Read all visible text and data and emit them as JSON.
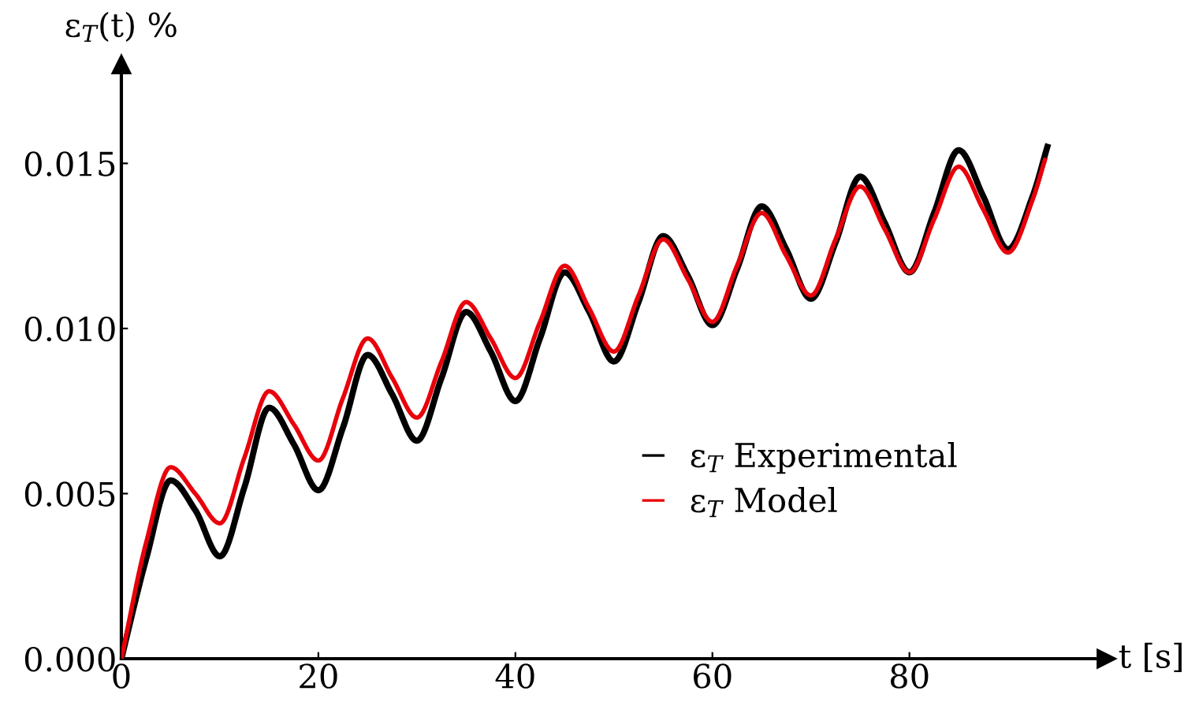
{
  "chart_data": {
    "type": "line",
    "xlabel": "t [s]",
    "ylabel": "ε$_{T}$(t) %",
    "xlim": [
      0,
      100
    ],
    "xticks": [
      0,
      20,
      40,
      60,
      80
    ],
    "ylim": [
      0,
      0.018
    ],
    "yticks": [
      {
        "value": 0,
        "label": "0.000"
      },
      {
        "value": 0.005,
        "label": "0.005"
      },
      {
        "value": 0.01,
        "label": "0.010"
      },
      {
        "value": 0.015,
        "label": "0.015"
      }
    ],
    "grid": false,
    "legend": "right",
    "marker": "none",
    "line_style": "solid",
    "series": [
      {
        "name": "ε$_{T}$ Experimental",
        "color": "#000000",
        "x": [
          0,
          2.5,
          5,
          7.5,
          10,
          12.5,
          15,
          17.5,
          20,
          22.5,
          25,
          27.5,
          30,
          32.5,
          35,
          37.5,
          40,
          42.5,
          45,
          47.5,
          50,
          52.5,
          55,
          57.5,
          60,
          62.5,
          65,
          67.5,
          70,
          72.5,
          75,
          77.5,
          80,
          82.5,
          85,
          87.5,
          90,
          92.5,
          94
        ],
        "values": [
          0,
          0.003,
          0.0054,
          0.0045,
          0.0031,
          0.0052,
          0.0076,
          0.0065,
          0.0051,
          0.007,
          0.0092,
          0.008,
          0.0066,
          0.0085,
          0.0105,
          0.0093,
          0.0078,
          0.0097,
          0.0117,
          0.0105,
          0.009,
          0.0108,
          0.0128,
          0.0116,
          0.0101,
          0.0118,
          0.0137,
          0.0124,
          0.0109,
          0.0126,
          0.0146,
          0.0132,
          0.0117,
          0.0135,
          0.0154,
          0.014,
          0.0124,
          0.014,
          0.0155
        ]
      },
      {
        "name": "ε$_{T}$ Model",
        "color": "#e8000b",
        "x": [
          0,
          2.5,
          5,
          7.5,
          10,
          12.5,
          15,
          17.5,
          20,
          22.5,
          25,
          27.5,
          30,
          32.5,
          35,
          37.5,
          40,
          42.5,
          45,
          47.5,
          50,
          52.5,
          55,
          57.5,
          60,
          62.5,
          65,
          67.5,
          70,
          72.5,
          75,
          77.5,
          80,
          82.5,
          85,
          87.5,
          90,
          92.5,
          93.75
        ],
        "values": [
          0,
          0.0035,
          0.0058,
          0.005,
          0.0041,
          0.0061,
          0.0081,
          0.0071,
          0.006,
          0.0079,
          0.0097,
          0.0085,
          0.0073,
          0.009,
          0.0108,
          0.0097,
          0.0085,
          0.0102,
          0.0119,
          0.0106,
          0.0093,
          0.011,
          0.0127,
          0.0115,
          0.0102,
          0.0119,
          0.0135,
          0.0122,
          0.011,
          0.0127,
          0.0143,
          0.013,
          0.0117,
          0.0133,
          0.0149,
          0.0136,
          0.0123,
          0.0139,
          0.0151
        ]
      }
    ]
  }
}
